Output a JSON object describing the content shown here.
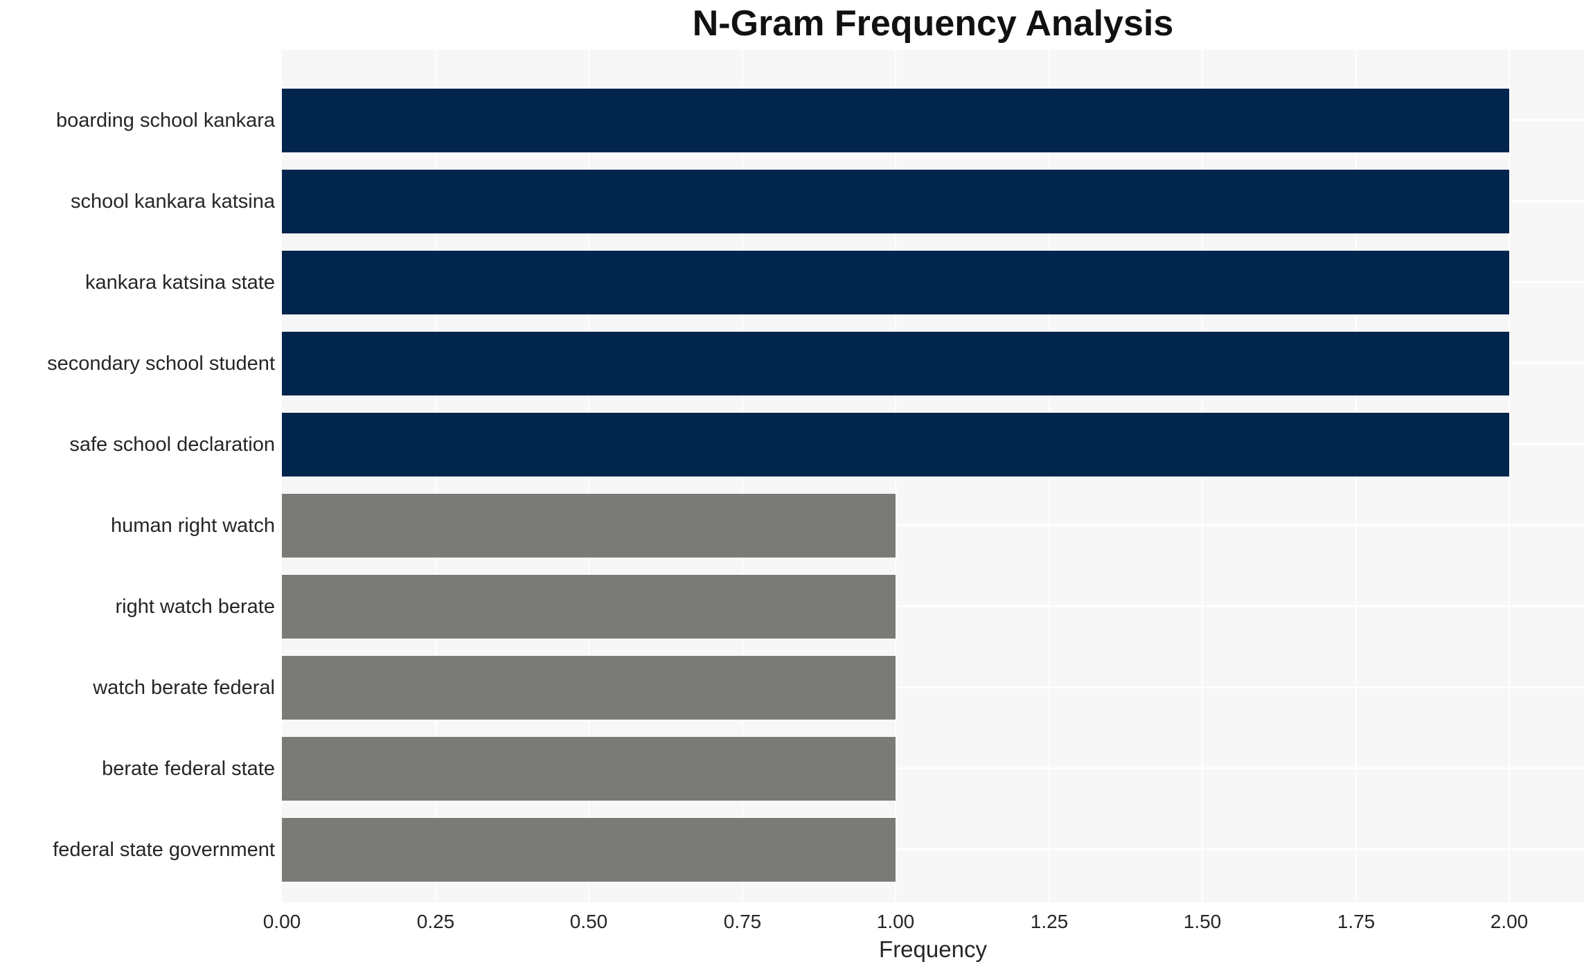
{
  "title": "N-Gram Frequency Analysis",
  "chart_data": {
    "type": "bar",
    "orientation": "horizontal",
    "title": "N-Gram Frequency Analysis",
    "xlabel": "Frequency",
    "ylabel": "",
    "categories": [
      "boarding school kankara",
      "school kankara katsina",
      "kankara katsina state",
      "secondary school student",
      "safe school declaration",
      "human right watch",
      "right watch berate",
      "watch berate federal",
      "berate federal state",
      "federal state government"
    ],
    "values": [
      2,
      2,
      2,
      2,
      2,
      1,
      1,
      1,
      1,
      1
    ],
    "bar_colors": [
      "#02254d",
      "#02254d",
      "#02254d",
      "#02254d",
      "#02254d",
      "#7a7a77",
      "#7a7a77",
      "#7a7a77",
      "#7a7a77",
      "#7a7a77"
    ],
    "xlim": [
      0,
      2.12
    ],
    "xticks": [
      0.0,
      0.25,
      0.5,
      0.75,
      1.0,
      1.25,
      1.5,
      1.75,
      2.0
    ],
    "xtick_labels": [
      "0.00",
      "0.25",
      "0.50",
      "0.75",
      "1.00",
      "1.25",
      "1.50",
      "1.75",
      "2.00"
    ],
    "grid": true,
    "legend": false,
    "colors": {
      "plot_background": "#f7f7f7",
      "figure_background": "#ffffff",
      "grid_line": "#ffffff",
      "bar_primary": "#02254d",
      "bar_secondary": "#7a7a77",
      "text": "#262626",
      "title_text": "#111111"
    }
  }
}
